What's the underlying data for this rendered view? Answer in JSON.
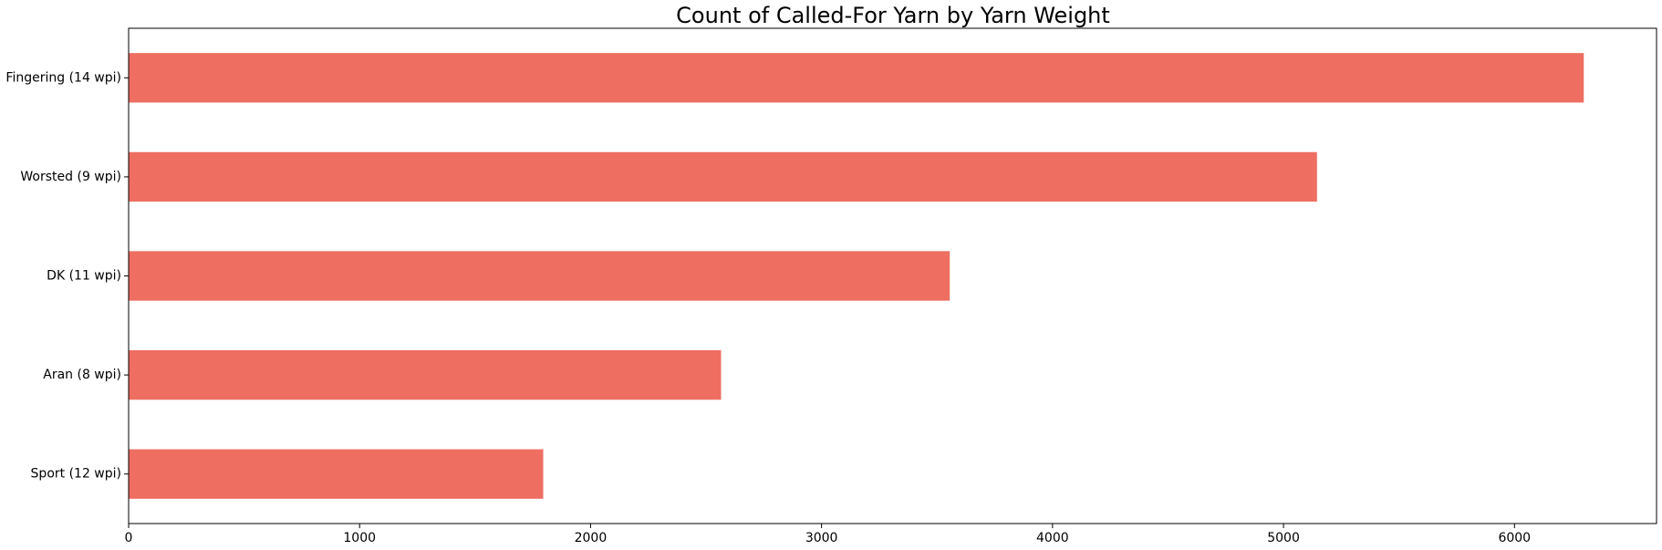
{
  "chart_data": {
    "type": "bar",
    "orientation": "horizontal",
    "title": "Count of Called-For Yarn by Yarn Weight",
    "xlabel": "",
    "ylabel": "",
    "categories": [
      "Fingering (14 wpi)",
      "Worsted (9 wpi)",
      "DK (11 wpi)",
      "Aran (8 wpi)",
      "Sport (12 wpi)"
    ],
    "values": [
      6300,
      5145,
      3555,
      2565,
      1795
    ],
    "xlim": [
      0,
      6615
    ],
    "xticks": [
      0,
      1000,
      2000,
      3000,
      4000,
      5000,
      6000
    ],
    "grid": false,
    "legend": "none",
    "bar_color": "#EE6E62"
  }
}
